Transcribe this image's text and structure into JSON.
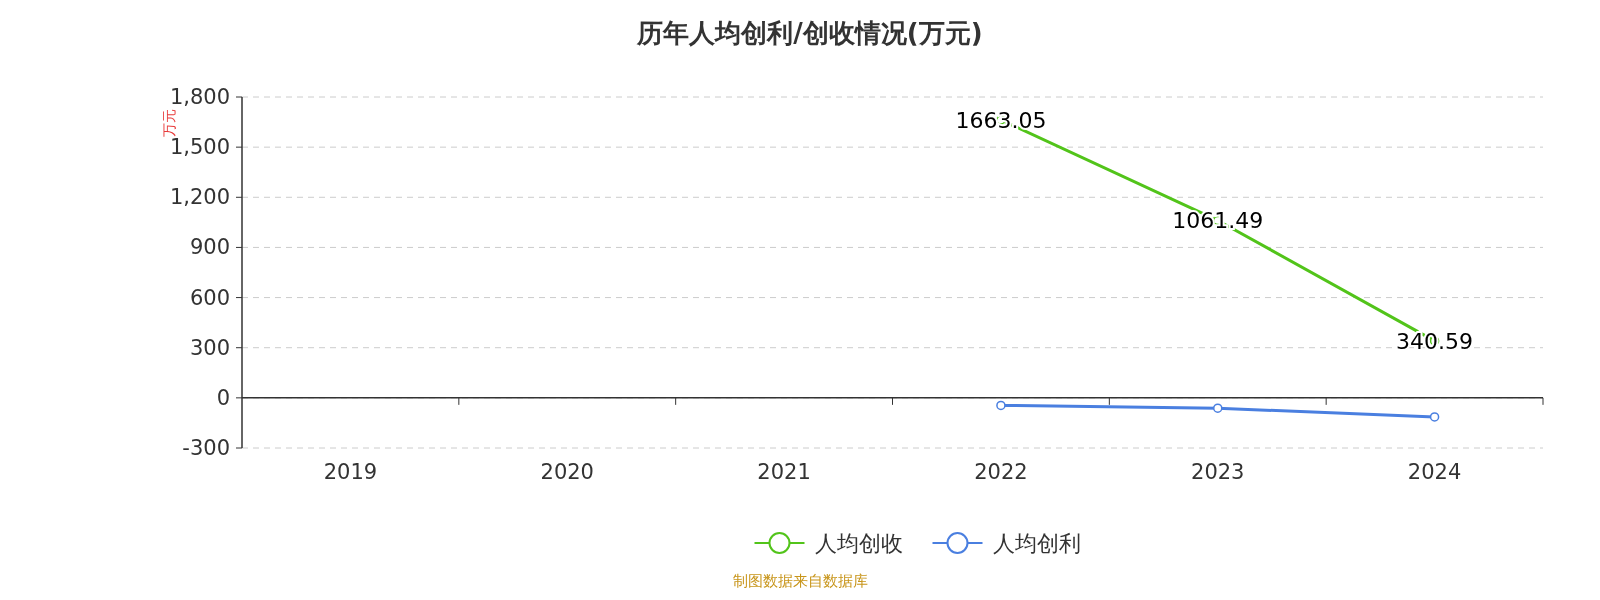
{
  "chart_data": {
    "type": "line",
    "title": "历年人均创利/创收情况(万元)",
    "ylabel": "万元",
    "categories": [
      "2019",
      "2020",
      "2021",
      "2022",
      "2023",
      "2024"
    ],
    "series": [
      {
        "name": "人均创收",
        "color": "#52c41a",
        "values": [
          null,
          null,
          null,
          1663.05,
          1061.49,
          340.59
        ],
        "value_labels": [
          null,
          null,
          null,
          "1663.05",
          "1061.49",
          "340.59"
        ]
      },
      {
        "name": "人均创利",
        "color": "#4a7fe0",
        "values": [
          null,
          null,
          null,
          -45,
          -62,
          -114
        ]
      }
    ],
    "ylim": [
      -300,
      1800
    ],
    "yticks": [
      {
        "value": -300,
        "label": "-300"
      },
      0,
      300,
      600,
      900,
      {
        "value": 1200,
        "label": "1,200"
      },
      {
        "value": 1500,
        "label": "1,500"
      },
      {
        "value": 1800,
        "label": "1,800"
      }
    ],
    "grid": "y",
    "legend": "bottom",
    "marker": "circle",
    "line_style": "solid",
    "annotations": [
      "制图数据来自数据库"
    ]
  }
}
